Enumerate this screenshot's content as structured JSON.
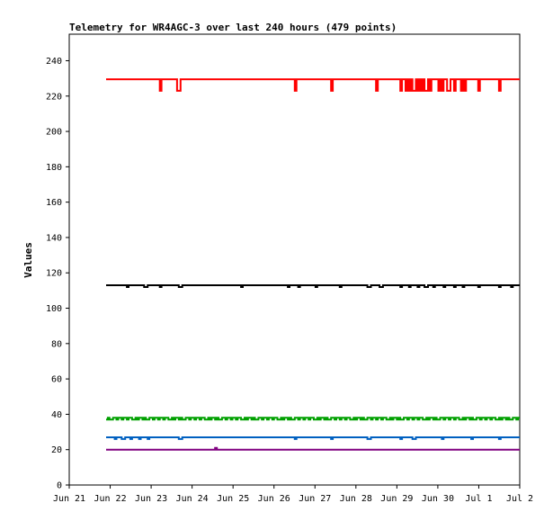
{
  "chart_data": {
    "type": "line",
    "title": "Telemetry for WR4AGC-3 over last 240 hours (479 points)",
    "xlabel": "",
    "ylabel": "Values",
    "x_ticks": [
      "Jun 21",
      "Jun 22",
      "Jun 23",
      "Jun 24",
      "Jun 25",
      "Jun 26",
      "Jun 27",
      "Jun 28",
      "Jun 29",
      "Jun 30",
      "Jul 1",
      "Jul 2"
    ],
    "x_range_days": [
      0,
      11
    ],
    "data_x_range_days": [
      0.9,
      11.0
    ],
    "ylim": [
      0,
      255
    ],
    "y_ticks": [
      0,
      20,
      40,
      60,
      80,
      100,
      120,
      140,
      160,
      180,
      200,
      220,
      240
    ],
    "grid": false,
    "legend": "none",
    "series": [
      {
        "color": "#ff0000",
        "baseline": 229.5,
        "dips": [
          {
            "x": 2.2,
            "y": 223
          },
          {
            "x": 2.65,
            "y": 223
          },
          {
            "x": 5.5,
            "y": 223
          },
          {
            "x": 6.4,
            "y": 223
          },
          {
            "x": 7.5,
            "y": 223
          },
          {
            "x": 8.1,
            "y": 223
          },
          {
            "x": 8.2,
            "y": 223
          },
          {
            "x": 8.3,
            "y": 223
          },
          {
            "x": 8.4,
            "y": 223
          },
          {
            "x": 8.5,
            "y": 223
          },
          {
            "x": 8.6,
            "y": 223
          },
          {
            "x": 8.7,
            "y": 223
          },
          {
            "x": 8.8,
            "y": 223
          },
          {
            "x": 9.0,
            "y": 223
          },
          {
            "x": 9.1,
            "y": 223
          },
          {
            "x": 9.25,
            "y": 223
          },
          {
            "x": 9.4,
            "y": 223
          },
          {
            "x": 9.55,
            "y": 223
          },
          {
            "x": 9.65,
            "y": 223
          },
          {
            "x": 10.0,
            "y": 223
          },
          {
            "x": 10.5,
            "y": 223
          }
        ]
      },
      {
        "color": "#000000",
        "baseline": 113,
        "dips": [
          {
            "x": 1.4,
            "y": 112
          },
          {
            "x": 1.85,
            "y": 112
          },
          {
            "x": 2.2,
            "y": 112
          },
          {
            "x": 2.7,
            "y": 112
          },
          {
            "x": 4.2,
            "y": 112
          },
          {
            "x": 5.35,
            "y": 112
          },
          {
            "x": 5.6,
            "y": 112
          },
          {
            "x": 6.0,
            "y": 112
          },
          {
            "x": 6.6,
            "y": 112
          },
          {
            "x": 7.3,
            "y": 112
          },
          {
            "x": 7.6,
            "y": 112
          },
          {
            "x": 8.1,
            "y": 112
          },
          {
            "x": 8.3,
            "y": 112
          },
          {
            "x": 8.5,
            "y": 112
          },
          {
            "x": 8.7,
            "y": 112
          },
          {
            "x": 8.9,
            "y": 112
          },
          {
            "x": 9.15,
            "y": 112
          },
          {
            "x": 9.4,
            "y": 112
          },
          {
            "x": 9.6,
            "y": 112
          },
          {
            "x": 10.0,
            "y": 112
          },
          {
            "x": 10.5,
            "y": 112
          },
          {
            "x": 10.8,
            "y": 112
          }
        ]
      },
      {
        "color": "#00a000",
        "baseline": 38,
        "noise": [
          37,
          38
        ]
      },
      {
        "color": "#0060c0",
        "baseline": 27,
        "dips": [
          {
            "x": 1.1,
            "y": 26
          },
          {
            "x": 1.3,
            "y": 26
          },
          {
            "x": 1.5,
            "y": 26
          },
          {
            "x": 1.7,
            "y": 26
          },
          {
            "x": 1.9,
            "y": 26
          },
          {
            "x": 2.7,
            "y": 26
          },
          {
            "x": 5.5,
            "y": 26
          },
          {
            "x": 6.4,
            "y": 26
          },
          {
            "x": 7.3,
            "y": 26
          },
          {
            "x": 8.1,
            "y": 26
          },
          {
            "x": 8.4,
            "y": 26
          },
          {
            "x": 9.1,
            "y": 26
          },
          {
            "x": 9.8,
            "y": 26
          },
          {
            "x": 10.5,
            "y": 26
          }
        ]
      },
      {
        "color": "#800080",
        "baseline": 20,
        "bumps": [
          {
            "x": 3.55,
            "y": 21
          }
        ]
      }
    ]
  }
}
